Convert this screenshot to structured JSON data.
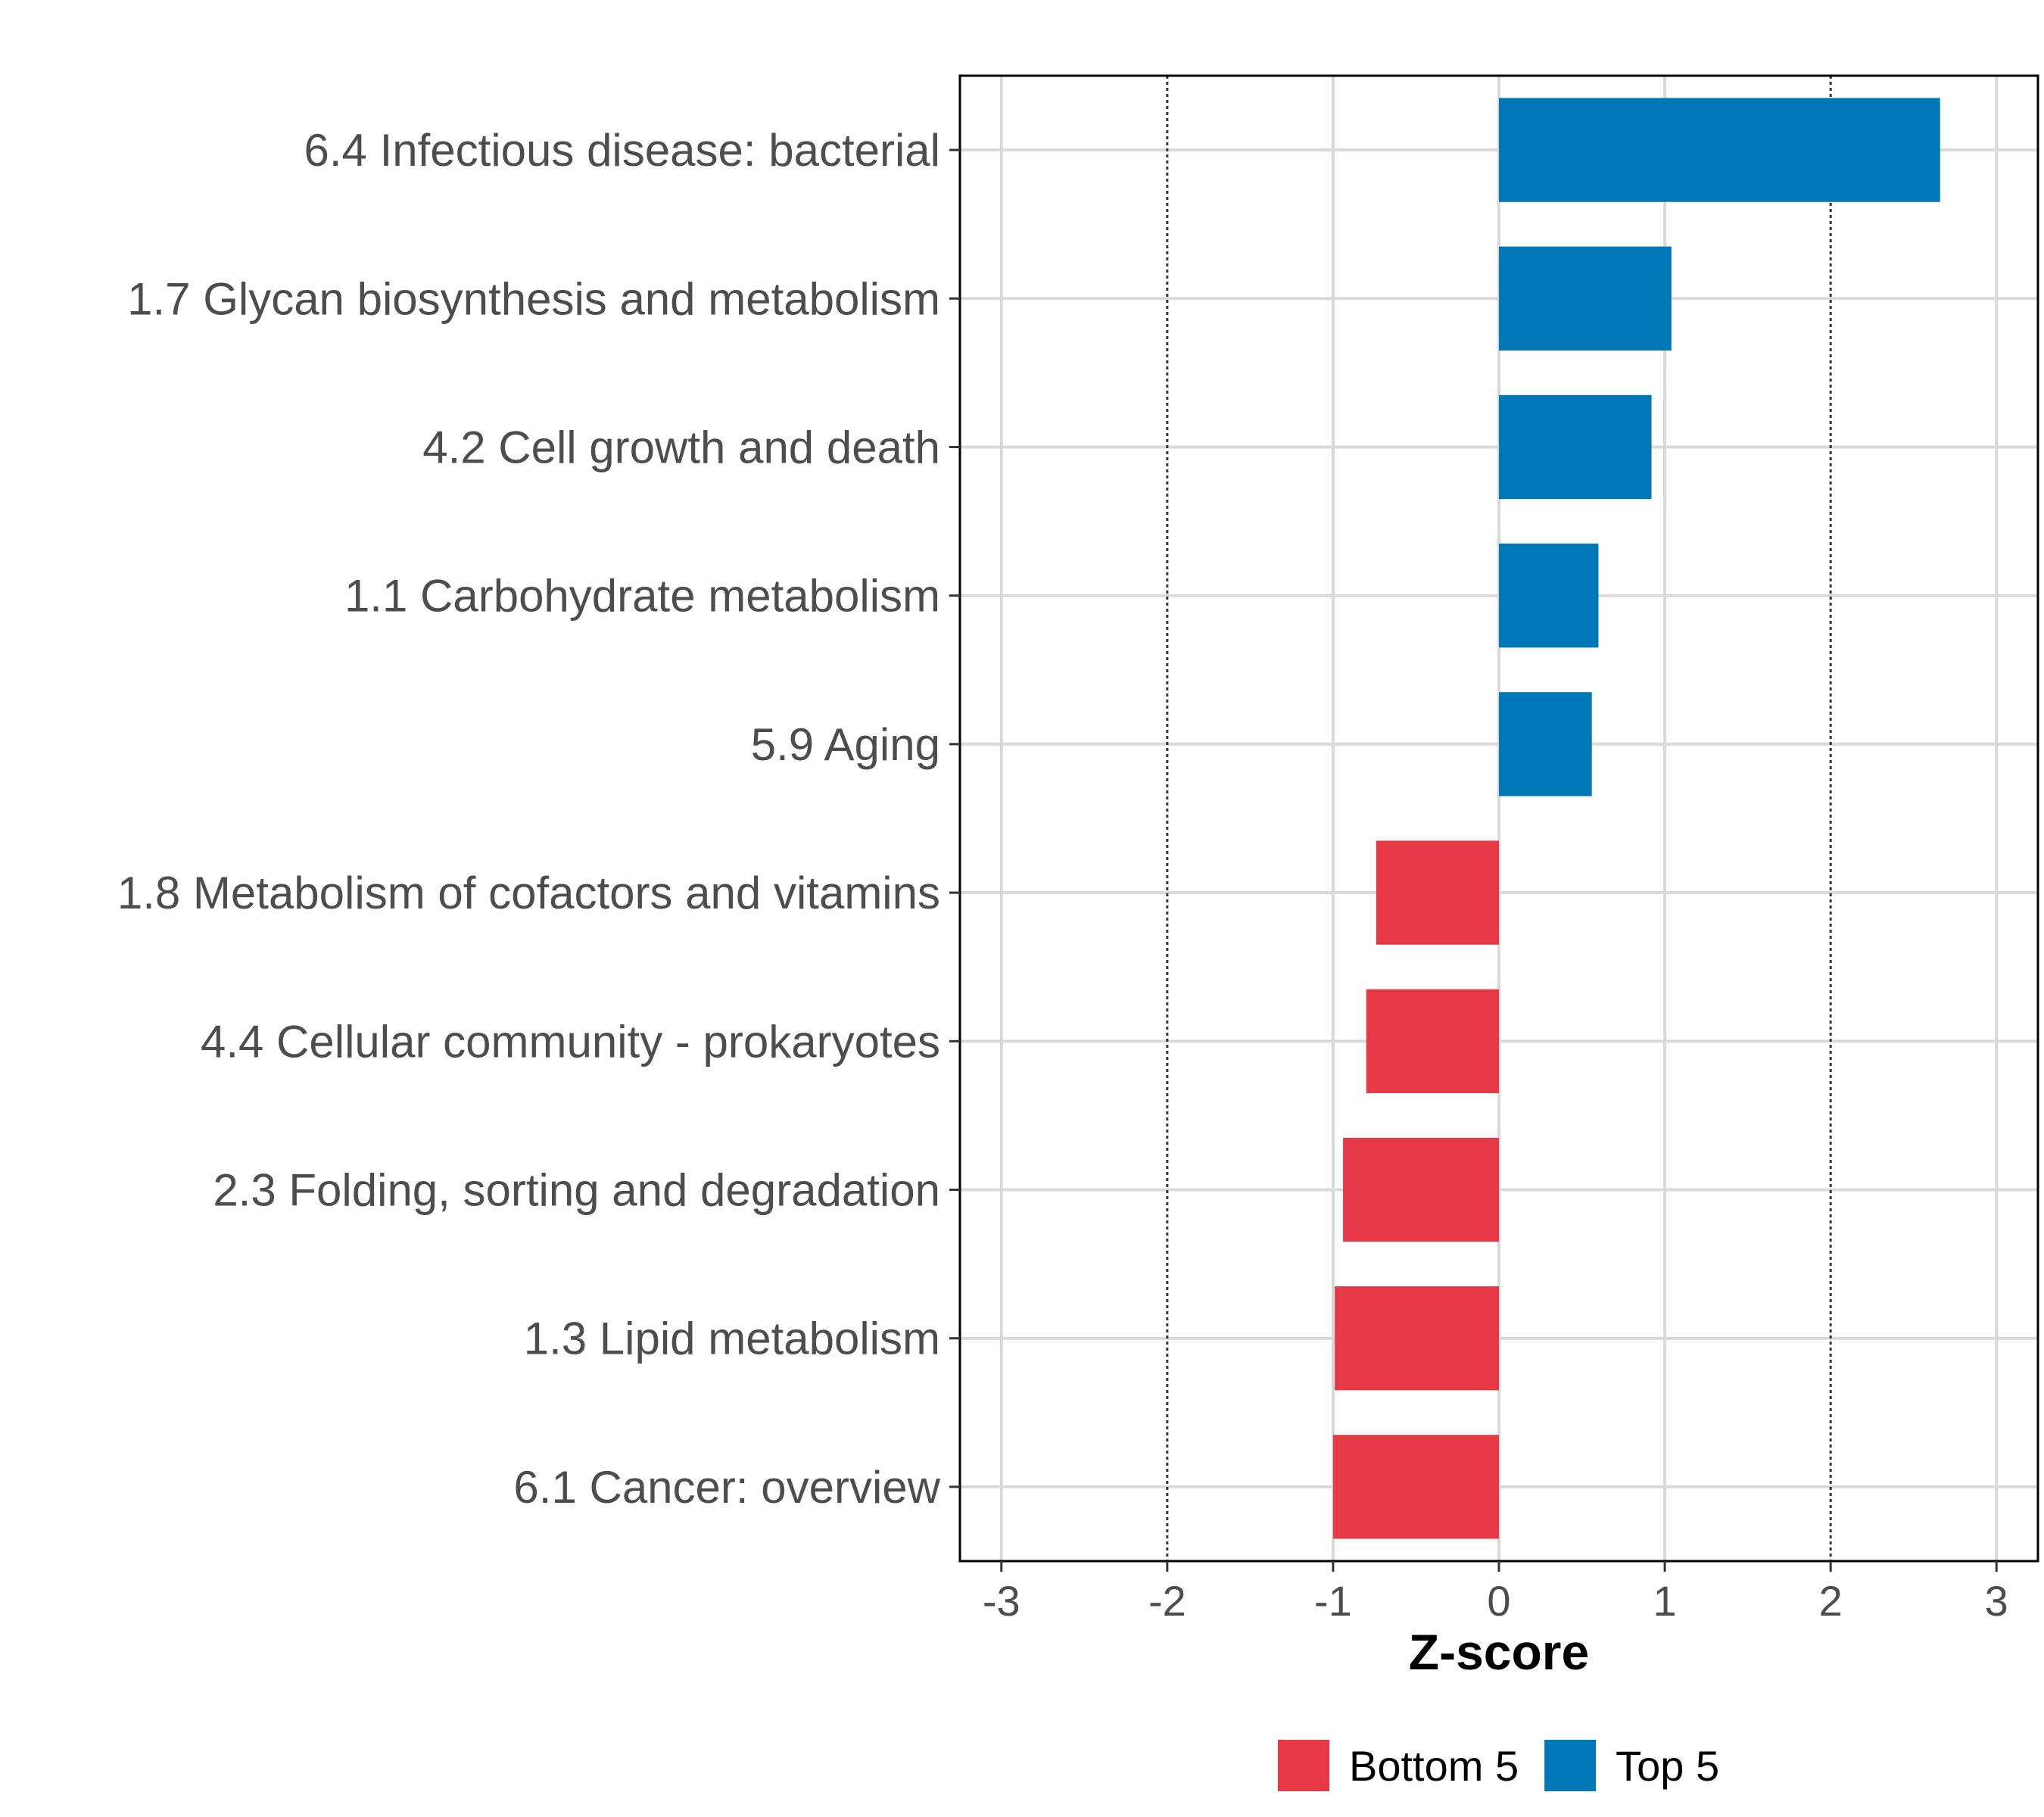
{
  "chart_data": {
    "type": "bar",
    "orientation": "horizontal",
    "xlabel": "Z-score",
    "ylabel": "",
    "xlim": [
      -3.25,
      3.25
    ],
    "xticks": [
      -3,
      -2,
      -1,
      0,
      1,
      2,
      3
    ],
    "xtick_labels": [
      "-3",
      "-2",
      "-1",
      "0",
      "1",
      "2",
      "3"
    ],
    "reference_lines": [
      -2,
      2
    ],
    "grid": true,
    "legend_position": "bottom",
    "categories": [
      "6.4 Infectious disease: bacterial",
      "1.7 Glycan biosynthesis and metabolism",
      "4.2 Cell growth and death",
      "1.1 Carbohydrate metabolism",
      "5.9 Aging",
      "1.8 Metabolism of cofactors and vitamins",
      "4.4 Cellular community - prokaryotes",
      "2.3 Folding, sorting and degradation",
      "1.3 Lipid metabolism",
      "6.1 Cancer: overview"
    ],
    "values": [
      2.66,
      1.04,
      0.92,
      0.6,
      0.56,
      -0.74,
      -0.8,
      -0.94,
      -0.99,
      -1.0
    ],
    "groups": [
      "Top 5",
      "Top 5",
      "Top 5",
      "Top 5",
      "Top 5",
      "Bottom 5",
      "Bottom 5",
      "Bottom 5",
      "Bottom 5",
      "Bottom 5"
    ],
    "legend": [
      {
        "name": "Bottom 5",
        "color": "#e63946"
      },
      {
        "name": "Top 5",
        "color": "#0077b6"
      }
    ]
  }
}
